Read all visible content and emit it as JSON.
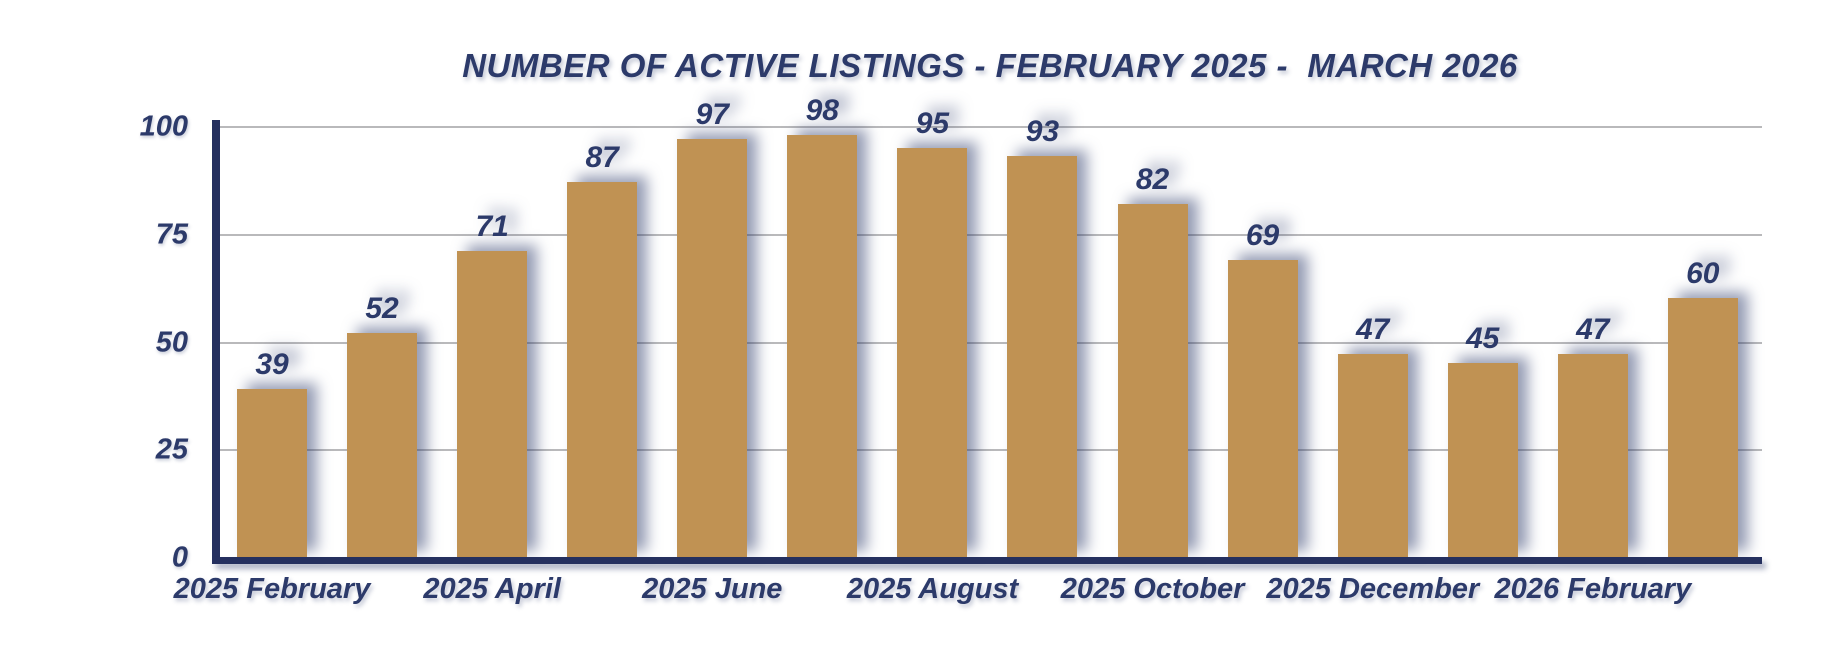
{
  "chart_data": {
    "type": "bar",
    "title": "NUMBER OF ACTIVE LISTINGS - FEBRUARY 2025 -  MARCH 2026",
    "values": [
      39,
      52,
      71,
      87,
      97,
      98,
      95,
      93,
      82,
      69,
      47,
      45,
      47,
      60
    ],
    "bar_count": 14,
    "x_tick_labels": [
      "2025 February",
      "2025 April",
      "2025 June",
      "2025 August",
      "2025 October",
      "2025 December",
      "2026 February"
    ],
    "x_tick_every": 2,
    "y_ticks": [
      0,
      25,
      50,
      75,
      100
    ],
    "ylim": [
      0,
      100
    ],
    "xlabel": "",
    "ylabel": "",
    "grid": "horizontal",
    "legend": "none",
    "colors": {
      "bar": "#c09253",
      "text": "#2c3a6a",
      "axis": "#25305f",
      "gridline": "#b9b9bb",
      "background": "#ffffff",
      "shadow": "rgba(44,58,106,0.5)"
    }
  }
}
